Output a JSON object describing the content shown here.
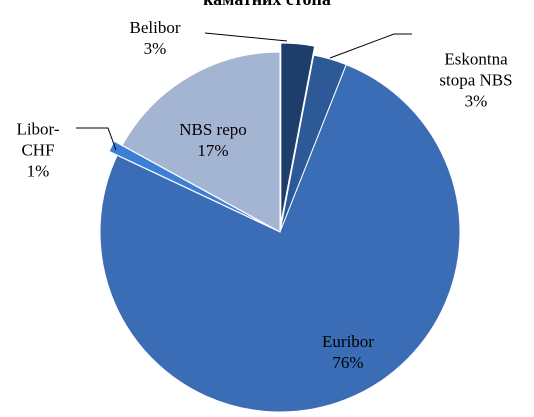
{
  "chart_data": {
    "type": "pie",
    "title": "каматних стопа",
    "categories": [
      "Belibor",
      "Eskontna stopa NBS",
      "Euribor",
      "Libor-CHF",
      "NBS repo"
    ],
    "values": [
      3,
      3,
      76,
      1,
      17
    ],
    "value_labels": [
      "3%",
      "3%",
      "76%",
      "1%",
      "17%"
    ],
    "colors": [
      "#1f3d6b",
      "#2d5997",
      "#3a6db5",
      "#3b80d6",
      "#a4b4d3"
    ]
  }
}
